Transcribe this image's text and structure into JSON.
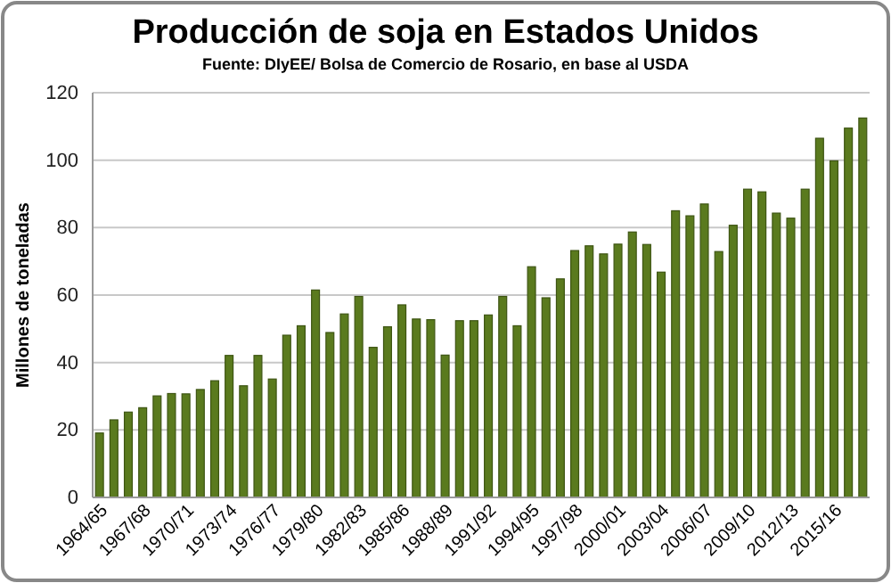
{
  "chart_data": {
    "type": "bar",
    "title": "Producción de soja en Estados Unidos",
    "subtitle": "Fuente: DIyEE/ Bolsa de Comercio de Rosario, en base al USDA",
    "ylabel": "Millones de toneladas",
    "categories": [
      "1964/65",
      null,
      null,
      "1967/68",
      null,
      null,
      "1970/71",
      null,
      null,
      "1973/74",
      null,
      null,
      "1976/77",
      null,
      null,
      "1979/80",
      null,
      null,
      "1982/83",
      null,
      null,
      "1985/86",
      null,
      null,
      "1988/89",
      null,
      null,
      "1991/92",
      null,
      null,
      "1994/95",
      null,
      null,
      "1997/98",
      null,
      null,
      "2000/01",
      null,
      null,
      "2003/04",
      null,
      null,
      "2006/07",
      null,
      null,
      "2009/10",
      null,
      null,
      "2012/13",
      null,
      null,
      "2015/16",
      null,
      null
    ],
    "values": [
      19.1,
      23.0,
      25.3,
      26.6,
      30.1,
      30.8,
      30.7,
      32.0,
      34.6,
      42.1,
      33.1,
      42.1,
      35.1,
      48.1,
      50.9,
      61.5,
      48.9,
      54.4,
      59.6,
      44.5,
      50.6,
      57.1,
      52.9,
      52.7,
      42.2,
      52.4,
      52.4,
      54.1,
      59.6,
      50.9,
      68.4,
      59.2,
      64.8,
      73.2,
      74.6,
      72.2,
      75.1,
      78.7,
      75.0,
      66.8,
      85.0,
      83.5,
      87.0,
      72.9,
      80.7,
      91.4,
      90.6,
      84.3,
      82.8,
      91.4,
      106.5,
      99.8,
      109.5,
      112.5
    ],
    "color": "#5a7a1e",
    "ylim": [
      0,
      120
    ],
    "yticks": [
      0,
      20,
      40,
      60,
      80,
      100,
      120
    ],
    "grid": "y"
  }
}
